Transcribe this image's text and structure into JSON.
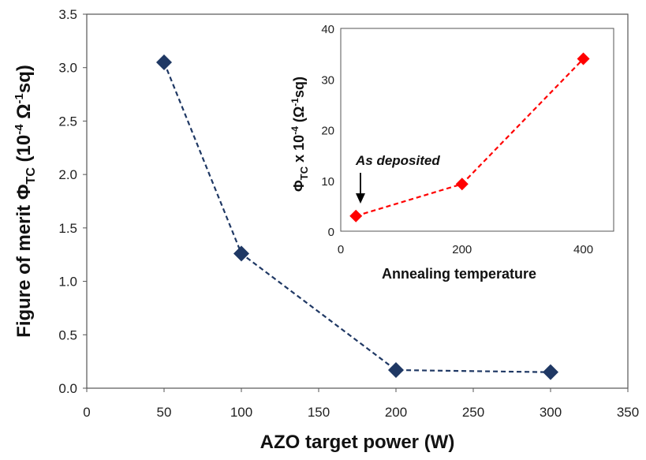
{
  "chart_data": [
    {
      "type": "line",
      "title": "",
      "xlabel": "AZO target power (W)",
      "ylabel": "Figure of merit ΦTC (10⁻⁴ Ω⁻¹sq)",
      "ylabel_parts": {
        "main": "Figure of merit Φ",
        "sub": "TC",
        "open": " (10",
        "sup1": "-4",
        "mid": " Ω",
        "sup2": "-1",
        "end": "sq)"
      },
      "xlim": [
        0,
        350
      ],
      "ylim": [
        0,
        3.5
      ],
      "xticks": [
        0,
        50,
        100,
        150,
        200,
        250,
        300,
        350
      ],
      "yticks": [
        0.0,
        0.5,
        1.0,
        1.5,
        2.0,
        2.5,
        3.0,
        3.5
      ],
      "ytick_labels": [
        "0.0",
        "0.5",
        "1.0",
        "1.5",
        "2.0",
        "2.5",
        "3.0",
        "3.5"
      ],
      "series": [
        {
          "x": [
            50,
            100,
            200,
            300
          ],
          "values": [
            3.05,
            1.26,
            0.17,
            0.15
          ],
          "color": "#1f3864",
          "marker": "diamond",
          "line": "dashed"
        }
      ]
    },
    {
      "type": "line",
      "title": "",
      "xlabel": "Annealing temperature",
      "ylabel": "ΦTC × 10⁻⁴ (Ω⁻¹sq)",
      "ylabel_parts": {
        "main": "Φ",
        "sub": "TC",
        "mid": " x 10",
        "sup1": "-4",
        "open": " (Ω",
        "sup2": "-1",
        "end": "sq)"
      },
      "xlim": [
        0,
        450
      ],
      "ylim": [
        0,
        40
      ],
      "xticks": [
        0,
        200,
        400
      ],
      "yticks": [
        0,
        10,
        20,
        30,
        40
      ],
      "annotation": "As deposited",
      "series": [
        {
          "x": [
            25,
            200,
            400
          ],
          "values": [
            3,
            9.3,
            34
          ],
          "color": "#ff0000",
          "marker": "diamond",
          "line": "dashed"
        }
      ]
    }
  ]
}
